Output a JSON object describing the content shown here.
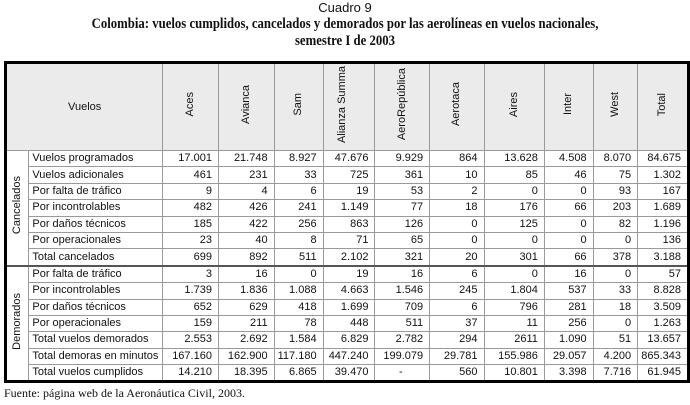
{
  "caption": "Cuadro 9",
  "title_line1": "Colombia: vuelos cumplidos, cancelados y demorados por las aerolíneas en vuelos nacionales,",
  "title_line2": "semestre I de 2003",
  "table": {
    "row_header": "Vuelos",
    "columns": [
      "Aces",
      "Avianca",
      "Sam",
      "Alianza Summa",
      "AeroRepública",
      "Aerotaca",
      "Aires",
      "Inter",
      "West",
      "Total"
    ],
    "groups": [
      {
        "label": "Cancelados",
        "rows": [
          {
            "label": "Vuelos programados",
            "values": [
              "17.001",
              "21.748",
              "8.927",
              "47.676",
              "9.929",
              "864",
              "13.628",
              "4.508",
              "8.070",
              "84.675"
            ]
          },
          {
            "label": "Vuelos adicionales",
            "values": [
              "461",
              "231",
              "33",
              "725",
              "361",
              "10",
              "85",
              "46",
              "75",
              "1.302"
            ]
          },
          {
            "label": "Por falta de tráfico",
            "values": [
              "9",
              "4",
              "6",
              "19",
              "53",
              "2",
              "0",
              "0",
              "93",
              "167"
            ]
          },
          {
            "label": "Por incontrolables",
            "values": [
              "482",
              "426",
              "241",
              "1.149",
              "77",
              "18",
              "176",
              "66",
              "203",
              "1.689"
            ]
          },
          {
            "label": "Por daños técnicos",
            "values": [
              "185",
              "422",
              "256",
              "863",
              "126",
              "0",
              "125",
              "0",
              "82",
              "1.196"
            ]
          },
          {
            "label": "Por operacionales",
            "values": [
              "23",
              "40",
              "8",
              "71",
              "65",
              "0",
              "0",
              "0",
              "0",
              "136"
            ]
          },
          {
            "label": "Total cancelados",
            "values": [
              "699",
              "892",
              "511",
              "2.102",
              "321",
              "20",
              "301",
              "66",
              "378",
              "3.188"
            ]
          }
        ]
      },
      {
        "label": "Demorados",
        "rows": [
          {
            "label": "Por falta de tráfico",
            "values": [
              "3",
              "16",
              "0",
              "19",
              "16",
              "6",
              "0",
              "16",
              "0",
              "57"
            ]
          },
          {
            "label": "Por incontrolables",
            "values": [
              "1.739",
              "1.836",
              "1.088",
              "4.663",
              "1.546",
              "245",
              "1.804",
              "537",
              "33",
              "8.828"
            ]
          },
          {
            "label": "Por daños técnicos",
            "values": [
              "652",
              "629",
              "418",
              "1.699",
              "709",
              "6",
              "796",
              "281",
              "18",
              "3.509"
            ]
          },
          {
            "label": "Por operacionales",
            "values": [
              "159",
              "211",
              "78",
              "448",
              "511",
              "37",
              "11",
              "256",
              "0",
              "1.263"
            ]
          },
          {
            "label": "Total vuelos demorados",
            "values": [
              "2.553",
              "2.692",
              "1.584",
              "6.829",
              "2.782",
              "294",
              "2611",
              "1.090",
              "51",
              "13.657"
            ]
          },
          {
            "label": "Total demoras en minutos",
            "values": [
              "167.160",
              "162.900",
              "117.180",
              "447.240",
              "199.079",
              "29.781",
              "155.986",
              "29.057",
              "4.200",
              "865.343"
            ]
          },
          {
            "label": "Total vuelos cumplidos",
            "values": [
              "14.210",
              "18.395",
              "6.865",
              "39.470",
              "-",
              "560",
              "10.801",
              "3.398",
              "7.716",
              "61.945"
            ]
          }
        ]
      }
    ]
  },
  "source": "Fuente: página web de la Aeronáutica Civil, 2003."
}
